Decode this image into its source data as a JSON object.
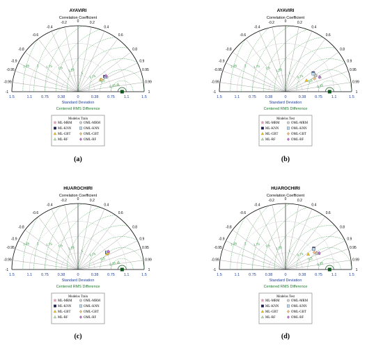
{
  "chart_data": [
    {
      "panel": "(a)",
      "type": "scatter",
      "subtype": "taylor-diagram",
      "title": "AYAVIRI",
      "angular_axis_label": "Correlation Coefficient",
      "x_axis_label": "Standard Deviation",
      "rms_axis_label": "Centered RMS Difference",
      "correlation_ticks_left": [
        "-0.2",
        "-0.4",
        "-0.6",
        "-0.8",
        "-0.9",
        "-0.95",
        "-0.99",
        "-1"
      ],
      "correlation_ticks_right": [
        "0",
        "0.2",
        "0.4",
        "0.6",
        "0.8",
        "0.9",
        "0.95",
        "0.99",
        "1"
      ],
      "sd_ticks": [
        "1.5",
        "1.1",
        "0.75",
        "0.38",
        "0",
        "0.38",
        "0.75",
        "1.1",
        "1.5"
      ],
      "sd_range": [
        0,
        1.5
      ],
      "reference_sd": 1.0,
      "rms_ticks": [
        "0.25",
        "0.5",
        "0.75",
        "1",
        "1.25",
        "1.5",
        "1.75",
        "2",
        "2.25",
        "2.5"
      ],
      "legend_title": "Modelos Train",
      "legend": [
        {
          "name": "ML-MRM",
          "marker": "star",
          "color": "#f2a0c0"
        },
        {
          "name": "OML-MRM",
          "marker": "circle",
          "color": "#cccccc"
        },
        {
          "name": "ML-KNN",
          "marker": "square",
          "color": "#1a1a5e"
        },
        {
          "name": "OML-KNN",
          "marker": "square",
          "color": "#b8d8f0"
        },
        {
          "name": "ML-GBT",
          "marker": "triangle",
          "color": "#f2c200"
        },
        {
          "name": "OML-GBT",
          "marker": "diamond",
          "color": "#f2c27a"
        },
        {
          "name": "ML-RF",
          "marker": "triangle",
          "color": "#b0e0a0"
        },
        {
          "name": "OML-RF",
          "marker": "diamond",
          "color": "#c070d0"
        }
      ],
      "points": [
        {
          "model": "ML-MRM",
          "sd": 0.72,
          "corr": 0.88
        },
        {
          "model": "OML-MRM",
          "sd": 0.73,
          "corr": 0.89
        },
        {
          "model": "ML-KNN",
          "sd": 0.7,
          "corr": 0.87
        },
        {
          "model": "OML-KNN",
          "sd": 0.71,
          "corr": 0.88
        },
        {
          "model": "ML-GBT",
          "sd": 0.58,
          "corr": 0.88
        },
        {
          "model": "OML-GBT",
          "sd": 0.6,
          "corr": 0.89
        },
        {
          "model": "ML-RF",
          "sd": 0.92,
          "corr": 0.985
        },
        {
          "model": "OML-RF",
          "sd": 0.73,
          "corr": 0.87
        }
      ]
    },
    {
      "panel": "(b)",
      "type": "scatter",
      "subtype": "taylor-diagram",
      "title": "AYAVIRI",
      "angular_axis_label": "Correlation Coefficient",
      "x_axis_label": "Standard Deviation",
      "rms_axis_label": "Centered RMS Difference",
      "correlation_ticks_left": [
        "-0.2",
        "-0.4",
        "-0.6",
        "-0.8",
        "-0.9",
        "-0.95",
        "-0.99",
        "-1"
      ],
      "correlation_ticks_right": [
        "0",
        "0.2",
        "0.4",
        "0.6",
        "0.8",
        "0.9",
        "0.95",
        "0.99",
        "1"
      ],
      "sd_ticks": [
        "1.5",
        "1.1",
        "0.75",
        "0.38",
        "0",
        "0.38",
        "0.75",
        "1.1",
        "1.5"
      ],
      "sd_range": [
        0,
        1.5
      ],
      "reference_sd": 1.0,
      "rms_ticks": [
        "0.25",
        "0.5",
        "0.75",
        "1",
        "1.25",
        "1.5",
        "1.75",
        "2",
        "2.25",
        "2.5"
      ],
      "legend_title": "Modelos Test",
      "legend": [
        {
          "name": "ML-MRM",
          "marker": "star",
          "color": "#f2a0c0"
        },
        {
          "name": "OML-MRM",
          "marker": "circle",
          "color": "#cccccc"
        },
        {
          "name": "ML-KNN",
          "marker": "square",
          "color": "#1a1a5e"
        },
        {
          "name": "OML-KNN",
          "marker": "square",
          "color": "#b8d8f0"
        },
        {
          "name": "ML-GBT",
          "marker": "triangle",
          "color": "#f2c200"
        },
        {
          "name": "OML-GBT",
          "marker": "diamond",
          "color": "#f2c27a"
        },
        {
          "name": "ML-RF",
          "marker": "triangle",
          "color": "#b0e0a0"
        },
        {
          "name": "OML-RF",
          "marker": "diamond",
          "color": "#c070d0"
        }
      ],
      "points": [
        {
          "model": "ML-MRM",
          "sd": 0.78,
          "corr": 0.88
        },
        {
          "model": "OML-MRM",
          "sd": 0.77,
          "corr": 0.88
        },
        {
          "model": "ML-KNN",
          "sd": 0.76,
          "corr": 0.83
        },
        {
          "model": "OML-KNN",
          "sd": 0.75,
          "corr": 0.84
        },
        {
          "model": "ML-GBT",
          "sd": 0.54,
          "corr": 0.88
        },
        {
          "model": "OML-GBT",
          "sd": 0.72,
          "corr": 0.91
        },
        {
          "model": "ML-RF",
          "sd": 0.85,
          "corr": 0.92
        },
        {
          "model": "OML-RF",
          "sd": 0.84,
          "corr": 0.92
        }
      ]
    },
    {
      "panel": "(c)",
      "type": "scatter",
      "subtype": "taylor-diagram",
      "title": "HUAROCHIRI",
      "angular_axis_label": "Correlation Coefficient",
      "x_axis_label": "Standard Deviation",
      "rms_axis_label": "Centered RMS Difference",
      "correlation_ticks_left": [
        "-0.2",
        "-0.4",
        "-0.6",
        "-0.8",
        "-0.9",
        "-0.95",
        "-0.99",
        "-1"
      ],
      "correlation_ticks_right": [
        "0",
        "0.2",
        "0.4",
        "0.6",
        "0.8",
        "0.9",
        "0.95",
        "0.99",
        "1"
      ],
      "sd_ticks": [
        "1.5",
        "1.1",
        "0.75",
        "0.38",
        "0",
        "0.38",
        "0.75",
        "1.1",
        "1.5"
      ],
      "sd_range": [
        0,
        1.5
      ],
      "reference_sd": 1.0,
      "rms_ticks": [
        "0.25",
        "0.5",
        "0.75",
        "1",
        "1.25",
        "1.5",
        "1.75",
        "2",
        "2.25",
        "2.5"
      ],
      "legend_title": "Modelos Train",
      "legend": [
        {
          "name": "ML-MRM",
          "marker": "star",
          "color": "#f2a0c0"
        },
        {
          "name": "OML-MRM",
          "marker": "circle",
          "color": "#cccccc"
        },
        {
          "name": "ML-KNN",
          "marker": "square",
          "color": "#1a1a5e"
        },
        {
          "name": "OML-KNN",
          "marker": "square",
          "color": "#b8d8f0"
        },
        {
          "name": "ML-GBT",
          "marker": "triangle",
          "color": "#f2c200"
        },
        {
          "name": "OML-GBT",
          "marker": "diamond",
          "color": "#f2c27a"
        },
        {
          "name": "ML-RF",
          "marker": "triangle",
          "color": "#b0e0a0"
        },
        {
          "name": "OML-RF",
          "marker": "diamond",
          "color": "#c070d0"
        }
      ],
      "points": [
        {
          "model": "ML-MRM",
          "sd": 0.78,
          "corr": 0.87
        },
        {
          "model": "OML-MRM",
          "sd": 0.79,
          "corr": 0.87
        },
        {
          "model": "ML-KNN",
          "sd": 0.76,
          "corr": 0.86
        },
        {
          "model": "OML-KNN",
          "sd": 0.77,
          "corr": 0.86
        },
        {
          "model": "ML-GBT",
          "sd": 0.75,
          "corr": 0.88
        },
        {
          "model": "OML-GBT",
          "sd": 0.78,
          "corr": 0.88
        },
        {
          "model": "ML-RF",
          "sd": 0.93,
          "corr": 0.985
        },
        {
          "model": "OML-RF",
          "sd": 0.8,
          "corr": 0.86
        }
      ]
    },
    {
      "panel": "(d)",
      "type": "scatter",
      "subtype": "taylor-diagram",
      "title": "HUAROCHIRI",
      "angular_axis_label": "Correlation Coefficient",
      "x_axis_label": "Standard Deviation",
      "rms_axis_label": "Centered RMS Difference",
      "correlation_ticks_left": [
        "-0.2",
        "-0.4",
        "-0.6",
        "-0.8",
        "-0.9",
        "-0.95",
        "-0.99",
        "-1"
      ],
      "correlation_ticks_right": [
        "0",
        "0.2",
        "0.4",
        "0.6",
        "0.8",
        "0.9",
        "0.95",
        "0.99",
        "1"
      ],
      "sd_ticks": [
        "1.5",
        "1.1",
        "0.75",
        "0.38",
        "0",
        "0.38",
        "0.75",
        "1.1",
        "1.5"
      ],
      "sd_range": [
        0,
        1.5
      ],
      "reference_sd": 1.0,
      "rms_ticks": [
        "0.25",
        "0.5",
        "0.75",
        "1",
        "1.25",
        "1.5",
        "1.75",
        "2",
        "2.25",
        "2.5"
      ],
      "legend_title": "Modelos Test",
      "legend": [
        {
          "name": "ML-MRM",
          "marker": "star",
          "color": "#f2a0c0"
        },
        {
          "name": "OML-MRM",
          "marker": "circle",
          "color": "#cccccc"
        },
        {
          "name": "ML-KNN",
          "marker": "square",
          "color": "#1a1a5e"
        },
        {
          "name": "OML-KNN",
          "marker": "square",
          "color": "#b8d8f0"
        },
        {
          "name": "ML-GBT",
          "marker": "triangle",
          "color": "#f2c200"
        },
        {
          "name": "OML-GBT",
          "marker": "diamond",
          "color": "#f2c27a"
        },
        {
          "name": "ML-RF",
          "marker": "triangle",
          "color": "#b0e0a0"
        },
        {
          "name": "OML-RF",
          "marker": "diamond",
          "color": "#c070d0"
        }
      ],
      "points": [
        {
          "model": "ML-MRM",
          "sd": 0.8,
          "corr": 0.88
        },
        {
          "model": "OML-MRM",
          "sd": 0.8,
          "corr": 0.89
        },
        {
          "model": "ML-KNN",
          "sd": 0.8,
          "corr": 0.8
        },
        {
          "model": "OML-KNN",
          "sd": 0.79,
          "corr": 0.81
        },
        {
          "model": "ML-GBT",
          "sd": 0.62,
          "corr": 0.83
        },
        {
          "model": "OML-GBT",
          "sd": 0.76,
          "corr": 0.86
        },
        {
          "model": "ML-RF",
          "sd": 0.84,
          "corr": 0.9
        },
        {
          "model": "OML-RF",
          "sd": 0.85,
          "corr": 0.9
        }
      ]
    }
  ]
}
